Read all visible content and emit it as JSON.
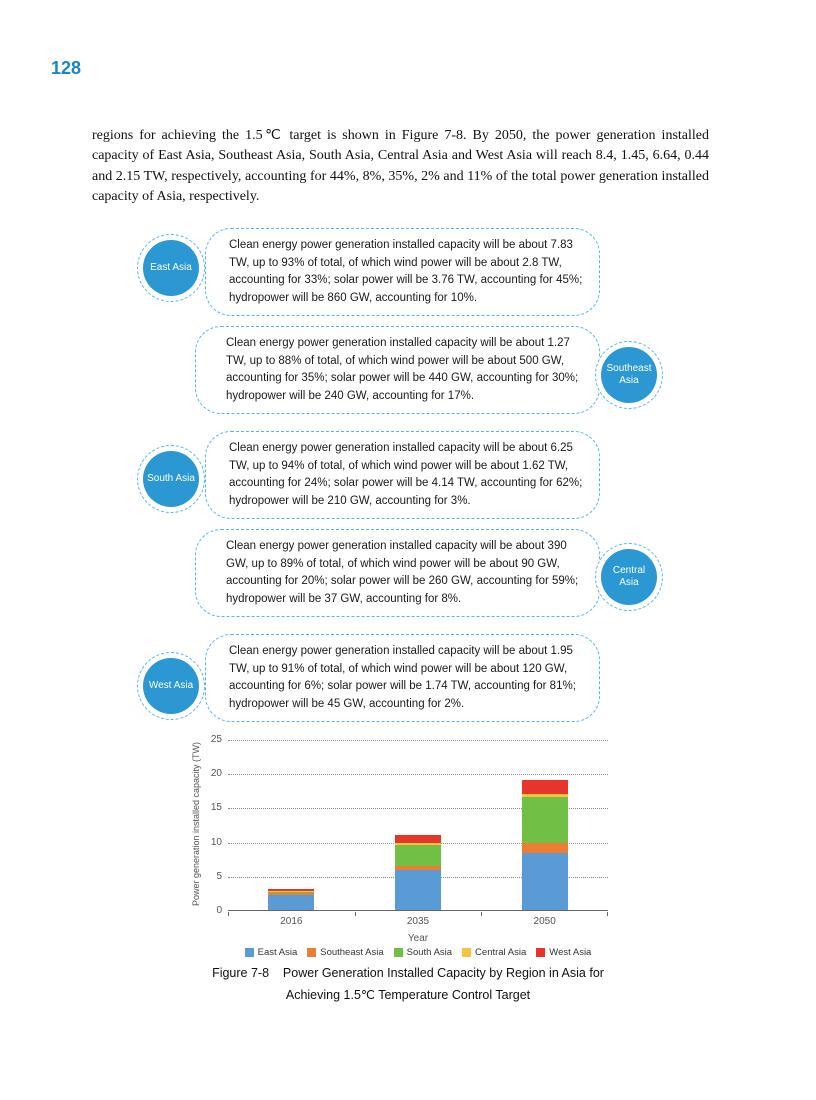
{
  "page_number": "128",
  "intro": "regions for achieving the 1.5℃ target is shown in Figure 7-8. By 2050, the power generation installed capacity of East Asia, Southeast Asia, South Asia, Central Asia and West Asia will reach 8.4, 1.45, 6.64, 0.44 and 2.15 TW, respectively, accounting for 44%, 8%, 35%, 2% and 11% of the total power generation installed capacity of Asia, respectively.",
  "callouts": [
    {
      "region": "East Asia",
      "side": "left",
      "text": "Clean energy power generation installed capacity will be about 7.83 TW, up to 93% of total, of which wind power will be about 2.8 TW, accounting for 33%; solar power will be 3.76 TW, accounting for 45%; hydropower will be 860 GW, accounting for 10%."
    },
    {
      "region": "Southeast Asia",
      "side": "right",
      "text": "Clean energy power generation installed capacity will be about 1.27 TW, up to 88% of total, of which wind power will be about 500 GW, accounting for 35%; solar power will be 440 GW, accounting for 30%; hydropower will be 240 GW, accounting for 17%."
    },
    {
      "region": "South Asia",
      "side": "left",
      "text": "Clean energy power generation installed capacity will be about 6.25 TW, up to 94% of total, of which wind power will be about 1.62 TW, accounting for 24%; solar power will be 4.14 TW, accounting for 62%; hydropower will be 210 GW, accounting for 3%."
    },
    {
      "region": "Central Asia",
      "side": "right",
      "text": "Clean energy power generation installed capacity will be about 390 GW, up to 89% of total, of which wind power will be about 90 GW, accounting for 20%; solar power will be 260 GW, accounting for 59%; hydropower will be 37 GW, accounting for 8%."
    },
    {
      "region": "West Asia",
      "side": "left",
      "text": "Clean energy power generation installed capacity will be about 1.95 TW, up to 91% of total, of which wind power will be about 120 GW, accounting for 6%; solar power will be 1.74 TW, accounting for 81%; hydropower will be 45 GW, accounting for 2%."
    }
  ],
  "chart_data": {
    "type": "bar",
    "stacked": true,
    "categories": [
      "2016",
      "2035",
      "2050"
    ],
    "series": [
      {
        "name": "East Asia",
        "color": "#5b9bd5",
        "values": [
          2.2,
          5.8,
          8.4
        ]
      },
      {
        "name": "Southeast Asia",
        "color": "#ed7d31",
        "values": [
          0.25,
          0.7,
          1.45
        ]
      },
      {
        "name": "South Asia",
        "color": "#71bf44",
        "values": [
          0.3,
          3.0,
          6.64
        ]
      },
      {
        "name": "Central Asia",
        "color": "#f5c242",
        "values": [
          0.1,
          0.3,
          0.44
        ]
      },
      {
        "name": "West Asia",
        "color": "#e8352b",
        "values": [
          0.2,
          1.1,
          2.15
        ]
      }
    ],
    "title": "",
    "xlabel": "Year",
    "ylabel": "Power generation installed capacity (TW)",
    "ylim": [
      0,
      25
    ],
    "yticks": [
      0,
      5,
      10,
      15,
      20,
      25
    ],
    "grid": "dotted-horizontal",
    "legend_position": "bottom"
  },
  "figure_caption": {
    "line1": "Figure 7-8    Power Generation Installed Capacity by Region in Asia for",
    "line2": "Achieving 1.5℃ Temperature Control Target"
  },
  "colors": {
    "accent_blue": "#2b97d3",
    "page_number_blue": "#1a86c8",
    "callout_border_blue": "#56b6e2"
  }
}
